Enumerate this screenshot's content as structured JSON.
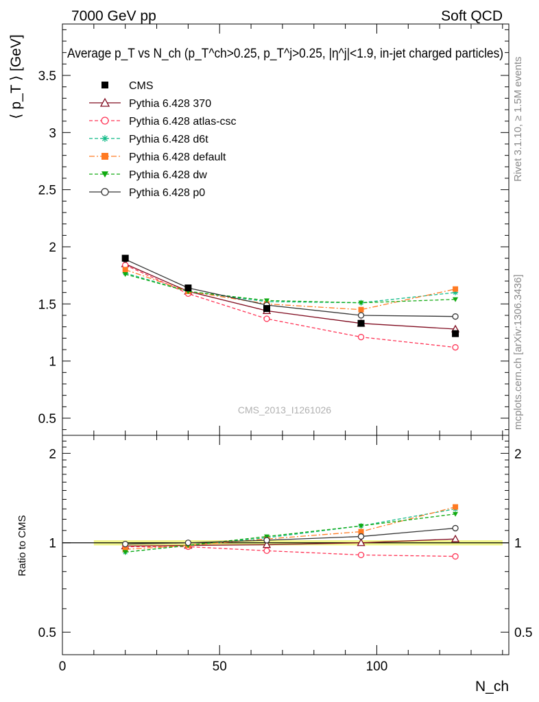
{
  "header": {
    "left": "7000 GeV pp",
    "right": "Soft QCD"
  },
  "side": {
    "top": "Rivet 3.1.10, ≥ 1.5M events",
    "bottom": "mcplots.cern.ch [arXiv:1306.3436]"
  },
  "chart_data": [
    {
      "type": "line",
      "panel": "main",
      "title": "Average p_T vs N_ch (p_T^ch>0.25, p_T^j>0.25, |η^j|<1.9, in-jet charged particles)",
      "ylabel": "⟨ p_T ⟩ [GeV]",
      "xlabel": "N_ch",
      "watermark": "CMS_2013_I1261026",
      "xlim": [
        0,
        142
      ],
      "ylim": [
        0.35,
        3.95
      ],
      "y_ticks": [
        0.5,
        1,
        1.5,
        2,
        2.5,
        3,
        3.5
      ],
      "y_tick_labels": [
        "0.5",
        "1",
        "1.5",
        "2",
        "2.5",
        "3",
        "3.5"
      ],
      "legend_position": "top-left",
      "x": [
        20,
        40,
        65,
        95,
        125
      ],
      "series": [
        {
          "name": "CMS",
          "values": [
            1.9,
            1.64,
            1.46,
            1.33,
            1.24
          ],
          "color": "#000000",
          "marker": "square-filled",
          "dash": "none",
          "line": false
        },
        {
          "name": "Pythia 6.428 370",
          "values": [
            1.85,
            1.61,
            1.44,
            1.33,
            1.28
          ],
          "color": "#7f0a1e",
          "marker": "triangle-open",
          "dash": "solid",
          "line": true
        },
        {
          "name": "Pythia 6.428 atlas-csc",
          "values": [
            1.84,
            1.59,
            1.37,
            1.21,
            1.12
          ],
          "color": "#ff3355",
          "marker": "circle-open",
          "dash": "dashed",
          "line": true
        },
        {
          "name": "Pythia 6.428 d6t",
          "values": [
            1.77,
            1.61,
            1.52,
            1.51,
            1.6
          ],
          "color": "#11bb88",
          "marker": "star",
          "dash": "dashed",
          "line": true
        },
        {
          "name": "Pythia 6.428 default",
          "values": [
            1.8,
            1.61,
            1.5,
            1.45,
            1.63
          ],
          "color": "#ff7a22",
          "marker": "square-filled",
          "dash": "dashdot",
          "line": true
        },
        {
          "name": "Pythia 6.428 dw",
          "values": [
            1.76,
            1.61,
            1.53,
            1.51,
            1.54
          ],
          "color": "#11aa11",
          "marker": "triangle-down-filled",
          "dash": "dashed",
          "line": true
        },
        {
          "name": "Pythia 6.428 p0",
          "values": [
            1.89,
            1.64,
            1.49,
            1.4,
            1.39
          ],
          "color": "#333333",
          "marker": "circle-open",
          "dash": "solid",
          "line": true
        }
      ]
    },
    {
      "type": "line",
      "panel": "ratio",
      "ylabel": "Ratio to CMS",
      "xlabel": "N_ch",
      "xlim": [
        0,
        142
      ],
      "ylim": [
        0.42,
        2.3
      ],
      "log_y": true,
      "y_ticks": [
        0.5,
        1,
        2
      ],
      "y_tick_labels": [
        "0.5",
        "1",
        "2"
      ],
      "x_ticks": [
        0,
        50,
        100
      ],
      "x_tick_labels": [
        "0",
        "50",
        "100"
      ],
      "band": {
        "x": [
          10,
          140
        ],
        "low": 0.98,
        "high": 1.02,
        "color": "#f0f58a"
      },
      "x": [
        20,
        40,
        65,
        95,
        125
      ],
      "series": [
        {
          "name": "Pythia 6.428 370",
          "values": [
            0.975,
            0.98,
            0.985,
            1.0,
            1.03
          ],
          "color": "#7f0a1e",
          "marker": "triangle-open",
          "dash": "solid"
        },
        {
          "name": "Pythia 6.428 atlas-csc",
          "values": [
            0.97,
            0.97,
            0.94,
            0.91,
            0.9
          ],
          "color": "#ff3355",
          "marker": "circle-open",
          "dash": "dashed"
        },
        {
          "name": "Pythia 6.428 d6t",
          "values": [
            0.93,
            0.98,
            1.04,
            1.14,
            1.3
          ],
          "color": "#11bb88",
          "marker": "star",
          "dash": "dashed"
        },
        {
          "name": "Pythia 6.428 default",
          "values": [
            0.95,
            0.98,
            1.03,
            1.09,
            1.32
          ],
          "color": "#ff7a22",
          "marker": "square-filled",
          "dash": "dashdot"
        },
        {
          "name": "Pythia 6.428 dw",
          "values": [
            0.93,
            0.98,
            1.05,
            1.14,
            1.25
          ],
          "color": "#11aa11",
          "marker": "triangle-down-filled",
          "dash": "dashed"
        },
        {
          "name": "Pythia 6.428 p0",
          "values": [
            0.99,
            1.0,
            1.02,
            1.05,
            1.12
          ],
          "color": "#333333",
          "marker": "circle-open",
          "dash": "solid"
        }
      ]
    }
  ]
}
